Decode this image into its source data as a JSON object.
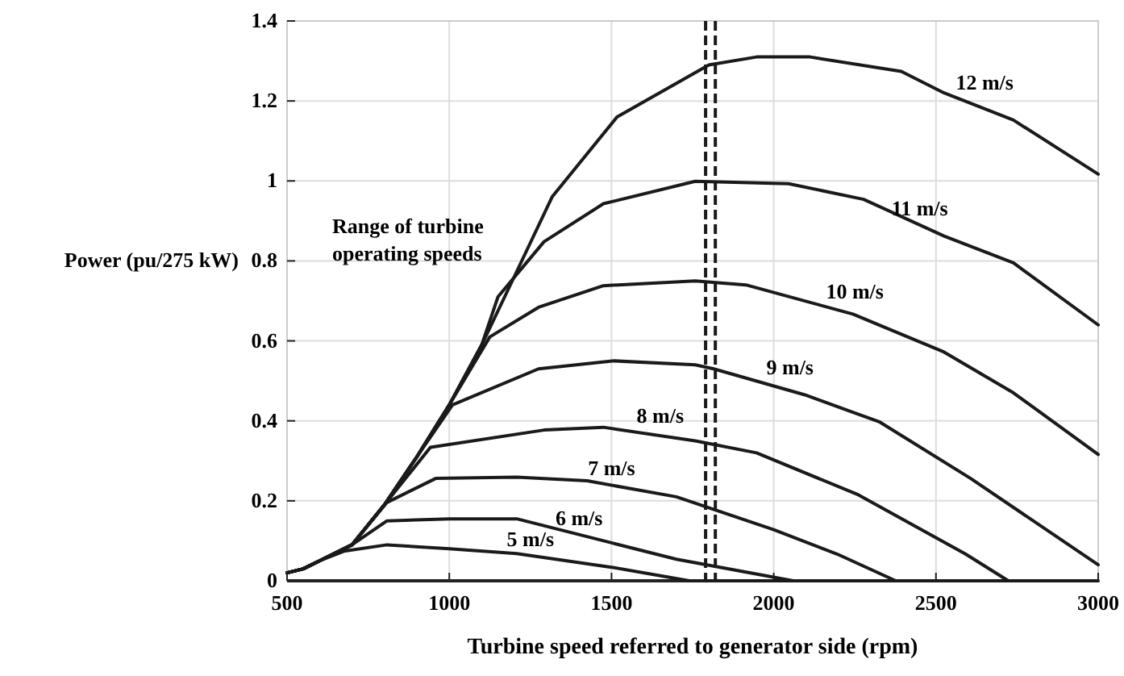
{
  "chart_data": {
    "type": "line",
    "xlabel": "Turbine speed referred to generator side (rpm)",
    "ylabel": "Power (pu/275 kW)",
    "xlim": [
      500,
      3000
    ],
    "xticks": [
      500,
      1000,
      1500,
      2000,
      2500,
      3000
    ],
    "ylim": [
      0,
      1.4
    ],
    "yticks": [
      0,
      0.2,
      0.4,
      0.6,
      0.8,
      1,
      1.2,
      1.4
    ],
    "grid": true,
    "marker": "none",
    "line_style": "solid",
    "series": [
      {
        "name": "5 m/s",
        "color": "#1a1a1a",
        "x": [
          500,
          550,
          600,
          675,
          808,
          1000,
          1208,
          1500,
          1740,
          3000
        ],
        "values": [
          0.02,
          0.03,
          0.05,
          0.074,
          0.09,
          0.08,
          0.068,
          0.034,
          0,
          0
        ]
      },
      {
        "name": "6 m/s",
        "color": "#1a1a1a",
        "x": [
          500,
          550,
          600,
          700,
          808,
          1000,
          1208,
          1500,
          1700,
          2060
        ],
        "values": [
          0.02,
          0.03,
          0.05,
          0.09,
          0.15,
          0.155,
          0.155,
          0.095,
          0.054,
          0
        ]
      },
      {
        "name": "7 m/s",
        "color": "#1a1a1a",
        "x": [
          500,
          550,
          600,
          700,
          808,
          958,
          1208,
          1425,
          1700,
          2000,
          2195,
          2376
        ],
        "values": [
          0.02,
          0.03,
          0.05,
          0.09,
          0.196,
          0.256,
          0.259,
          0.25,
          0.21,
          0.128,
          0.067,
          0
        ]
      },
      {
        "name": "8 m/s",
        "color": "#1a1a1a",
        "x": [
          500,
          550,
          600,
          700,
          800,
          942,
          1292,
          1475,
          1758,
          1947,
          2261,
          2591,
          2723
        ],
        "values": [
          0.02,
          0.03,
          0.05,
          0.09,
          0.19,
          0.334,
          0.377,
          0.384,
          0.35,
          0.32,
          0.215,
          0.067,
          0
        ]
      },
      {
        "name": "9 m/s",
        "color": "#1a1a1a",
        "x": [
          500,
          550,
          600,
          700,
          800,
          900,
          1010,
          1275,
          1508,
          1758,
          1815,
          2096,
          2327,
          2607,
          3000
        ],
        "values": [
          0.02,
          0.03,
          0.05,
          0.09,
          0.19,
          0.31,
          0.44,
          0.53,
          0.55,
          0.54,
          0.53,
          0.465,
          0.397,
          0.256,
          0.04
        ]
      },
      {
        "name": "10 m/s",
        "color": "#1a1a1a",
        "x": [
          500,
          550,
          600,
          700,
          800,
          900,
          1000,
          1125,
          1275,
          1475,
          1758,
          1914,
          2244,
          2525,
          2739,
          3000
        ],
        "values": [
          0.02,
          0.03,
          0.05,
          0.09,
          0.19,
          0.31,
          0.44,
          0.61,
          0.684,
          0.738,
          0.75,
          0.74,
          0.667,
          0.572,
          0.47,
          0.316
        ]
      },
      {
        "name": "11 m/s",
        "color": "#1a1a1a",
        "x": [
          500,
          550,
          600,
          700,
          800,
          900,
          1000,
          1100,
          1150,
          1292,
          1475,
          1758,
          2046,
          2277,
          2525,
          2739,
          3000
        ],
        "values": [
          0.02,
          0.03,
          0.05,
          0.09,
          0.19,
          0.31,
          0.44,
          0.59,
          0.71,
          0.848,
          0.943,
          0.999,
          0.993,
          0.954,
          0.862,
          0.795,
          0.64
        ]
      },
      {
        "name": "12 m/s",
        "color": "#1a1a1a",
        "x": [
          500,
          550,
          600,
          700,
          800,
          900,
          1000,
          1100,
          1200,
          1317,
          1517,
          1800,
          1947,
          2112,
          2393,
          2525,
          2739,
          3000
        ],
        "values": [
          0.02,
          0.03,
          0.05,
          0.09,
          0.19,
          0.31,
          0.44,
          0.59,
          0.76,
          0.96,
          1.16,
          1.29,
          1.31,
          1.31,
          1.274,
          1.22,
          1.152,
          1.017
        ]
      }
    ],
    "ref_lines": [
      {
        "axis": "x",
        "value": 1790,
        "color": "#1a1a1a",
        "line_style": "dashed"
      },
      {
        "axis": "x",
        "value": 1820,
        "color": "#1a1a1a",
        "line_style": "dashed"
      }
    ],
    "annotations": [
      "Range of turbine operating speeds"
    ]
  }
}
